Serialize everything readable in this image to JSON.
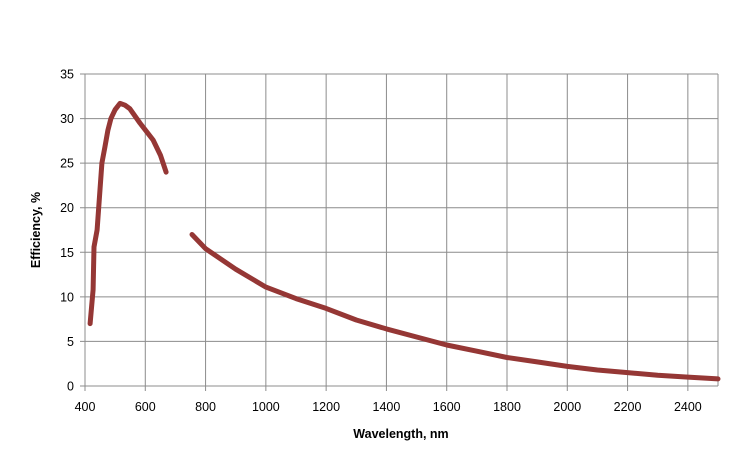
{
  "chart_data": {
    "type": "line",
    "title": "",
    "xlabel": "Wavelength, nm",
    "ylabel": "Efficiency, %",
    "xlim": [
      400,
      2500
    ],
    "ylim": [
      0,
      35
    ],
    "grid": true,
    "legend": "none",
    "x_ticks": [
      400,
      600,
      800,
      1000,
      1200,
      1400,
      1600,
      1800,
      2000,
      2200,
      2400
    ],
    "y_ticks": [
      0,
      5,
      10,
      15,
      20,
      25,
      30,
      35
    ],
    "series": [
      {
        "name": "segment-1",
        "color": "#953735",
        "points": [
          [
            417,
            7.0
          ],
          [
            427,
            10.8
          ],
          [
            430,
            15.6
          ],
          [
            440,
            17.5
          ],
          [
            456,
            25.0
          ],
          [
            466,
            26.8
          ],
          [
            476,
            28.7
          ],
          [
            486,
            30.0
          ],
          [
            500,
            31.0
          ],
          [
            516,
            31.7
          ],
          [
            533,
            31.5
          ],
          [
            549,
            31.1
          ],
          [
            582,
            29.5
          ],
          [
            626,
            27.6
          ],
          [
            650,
            25.9
          ],
          [
            669,
            24.0
          ]
        ]
      },
      {
        "name": "segment-2",
        "color": "#953735",
        "points": [
          [
            755,
            17.0
          ],
          [
            800,
            15.4
          ],
          [
            900,
            13.1
          ],
          [
            1000,
            11.1
          ],
          [
            1100,
            9.8
          ],
          [
            1200,
            8.7
          ],
          [
            1300,
            7.4
          ],
          [
            1400,
            6.4
          ],
          [
            1500,
            5.5
          ],
          [
            1600,
            4.6
          ],
          [
            1700,
            3.9
          ],
          [
            1800,
            3.2
          ],
          [
            1900,
            2.7
          ],
          [
            2000,
            2.2
          ],
          [
            2100,
            1.8
          ],
          [
            2200,
            1.5
          ],
          [
            2300,
            1.2
          ],
          [
            2400,
            1.0
          ],
          [
            2500,
            0.8
          ]
        ]
      }
    ]
  }
}
